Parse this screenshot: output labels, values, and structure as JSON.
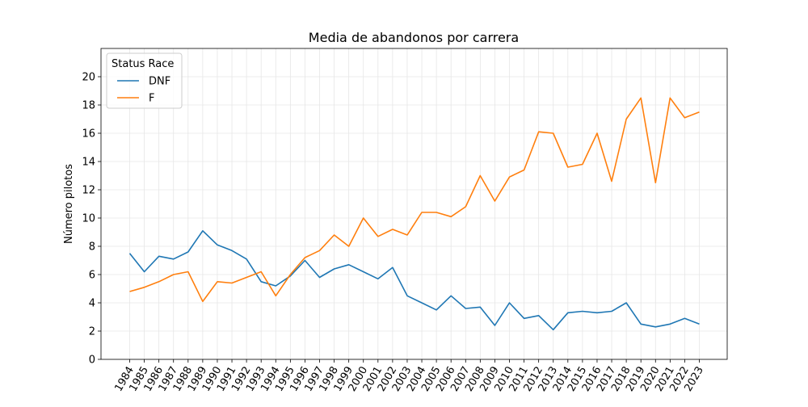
{
  "chart_data": {
    "type": "line",
    "title": "Media de abandonos por carrera",
    "xlabel": "",
    "ylabel": "Número pilotos",
    "ylim": [
      0,
      22
    ],
    "yticks": [
      0,
      2,
      4,
      6,
      8,
      10,
      12,
      14,
      16,
      18,
      20
    ],
    "grid": true,
    "legend": {
      "title": "Status Race",
      "position": "top-left"
    },
    "x": [
      "1984",
      "1985",
      "1986",
      "1987",
      "1988",
      "1989",
      "1990",
      "1991",
      "1992",
      "1993",
      "1994",
      "1995",
      "1996",
      "1997",
      "1998",
      "1999",
      "2000",
      "2001",
      "2002",
      "2003",
      "2004",
      "2005",
      "2006",
      "2007",
      "2008",
      "2009",
      "2010",
      "2011",
      "2012",
      "2013",
      "2014",
      "2015",
      "2016",
      "2017",
      "2018",
      "2019",
      "2020",
      "2021",
      "2022",
      "2023"
    ],
    "series": [
      {
        "name": "DNF",
        "color": "#1f77b4",
        "values": [
          7.5,
          6.2,
          7.3,
          7.1,
          7.6,
          9.1,
          8.1,
          7.7,
          7.1,
          5.5,
          5.2,
          5.9,
          7.0,
          5.8,
          6.4,
          6.7,
          6.2,
          5.7,
          6.5,
          4.5,
          4.0,
          3.5,
          4.5,
          3.6,
          3.7,
          2.4,
          4.0,
          2.9,
          3.1,
          2.1,
          3.3,
          3.4,
          3.3,
          3.4,
          4.0,
          2.5,
          2.3,
          2.5,
          2.9,
          2.5
        ]
      },
      {
        "name": "F",
        "color": "#ff7f0e",
        "values": [
          4.8,
          5.1,
          5.5,
          6.0,
          6.2,
          4.1,
          5.5,
          5.4,
          5.8,
          6.2,
          4.5,
          6.0,
          7.2,
          7.7,
          8.8,
          8.0,
          10.0,
          8.7,
          9.2,
          8.8,
          10.4,
          10.4,
          10.1,
          10.8,
          13.0,
          11.2,
          12.9,
          13.4,
          16.1,
          16.0,
          13.6,
          13.8,
          16.0,
          12.6,
          17.0,
          18.5,
          12.5,
          18.5,
          17.1,
          17.5
        ]
      }
    ]
  }
}
